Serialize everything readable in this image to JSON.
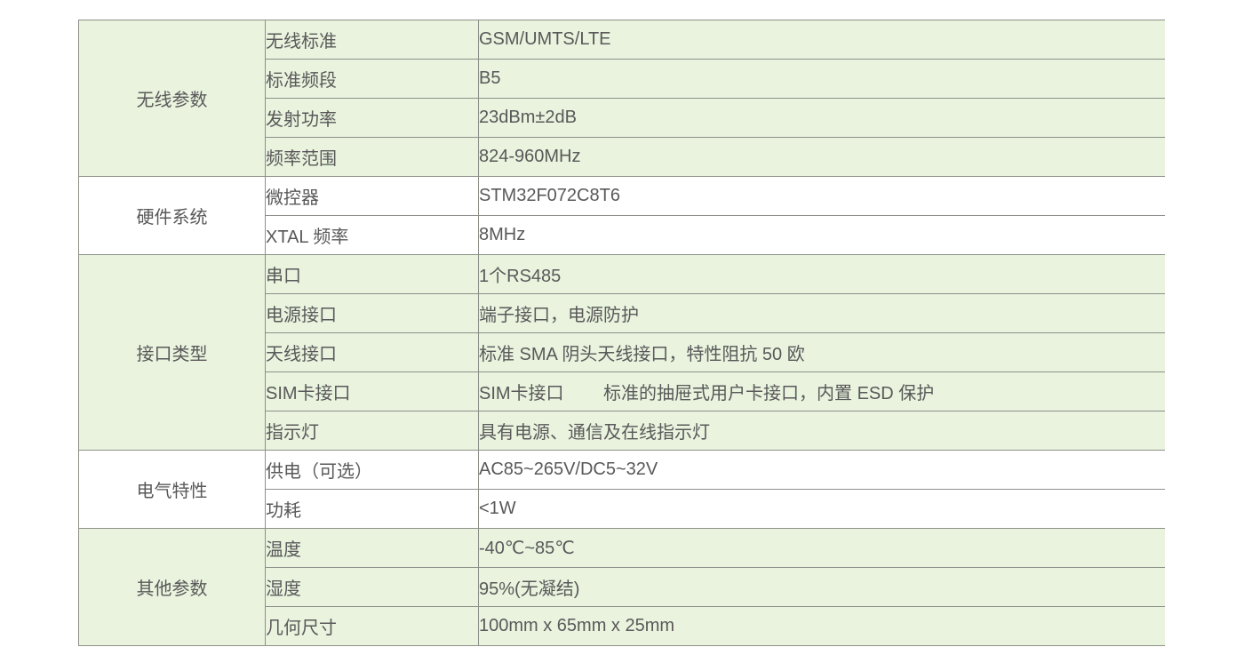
{
  "table": {
    "colors": {
      "group_highlight": "#e9f3de",
      "group_plain": "#ffffff",
      "border": "#8d9089",
      "text": "#595959"
    },
    "groups": [
      {
        "category": "无线参数",
        "rows": [
          {
            "param": "无线标准",
            "value": "GSM/UMTS/LTE"
          },
          {
            "param": "标准频段",
            "value": "B5"
          },
          {
            "param": "发射功率",
            "value": "23dBm±2dB"
          },
          {
            "param": "频率范围",
            "value": "824-960MHz"
          }
        ]
      },
      {
        "category": "硬件系统",
        "rows": [
          {
            "param": "微控器",
            "value": "STM32F072C8T6"
          },
          {
            "param": "XTAL 频率",
            "value": "8MHz"
          }
        ]
      },
      {
        "category": "接口类型",
        "rows": [
          {
            "param": "串口",
            "value": "1个RS485"
          },
          {
            "param": "电源接口",
            "value": "端子接口，电源防护"
          },
          {
            "param": "天线接口",
            "value": "标准 SMA 阴头天线接口，特性阻抗 50 欧"
          },
          {
            "param": "SIM卡接口",
            "value": "SIM卡接口        标准的抽屉式用户卡接口，内置 ESD 保护"
          },
          {
            "param": "指示灯",
            "value": "具有电源、通信及在线指示灯"
          }
        ]
      },
      {
        "category": "电气特性",
        "rows": [
          {
            "param": "供电（可选）",
            "value": "AC85~265V/DC5~32V"
          },
          {
            "param": "功耗",
            "value": "<1W"
          }
        ]
      },
      {
        "category": "其他参数",
        "rows": [
          {
            "param": "温度",
            "value": "-40℃~85℃"
          },
          {
            "param": "湿度",
            "value": "95%(无凝结)"
          },
          {
            "param": "几何尺寸",
            "value": "100mm x 65mm x 25mm"
          }
        ]
      }
    ]
  }
}
